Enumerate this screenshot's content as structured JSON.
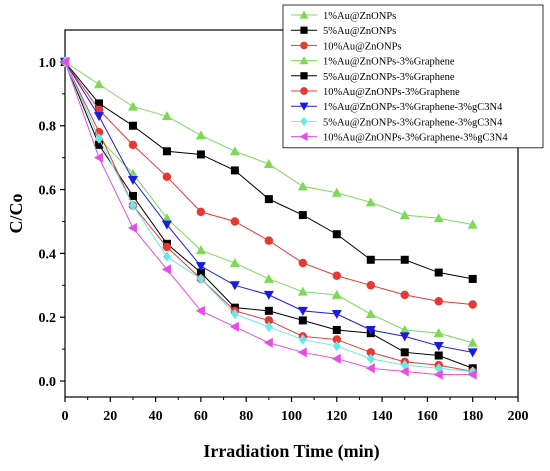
{
  "chart_data": {
    "type": "line",
    "xlabel": "Irradiation Time (min)",
    "ylabel": "C/Co",
    "xlim": [
      0,
      200
    ],
    "ylim": [
      -0.05,
      1.1
    ],
    "xticks": [
      0,
      20,
      40,
      60,
      80,
      100,
      120,
      140,
      160,
      180,
      200
    ],
    "yticks": [
      0.0,
      0.2,
      0.4,
      0.6,
      0.8,
      1.0
    ],
    "grid": false,
    "legend_position": "top-right",
    "x": [
      0,
      15,
      30,
      45,
      60,
      75,
      90,
      105,
      120,
      135,
      150,
      165,
      180
    ],
    "series": [
      {
        "name": "1%Au@ZnONPs",
        "color": "#7ed957",
        "marker": "triangle-up",
        "values": [
          1.0,
          0.93,
          0.86,
          0.83,
          0.77,
          0.72,
          0.68,
          0.61,
          0.59,
          0.56,
          0.52,
          0.51,
          0.49
        ]
      },
      {
        "name": "5%Au@ZnONPs",
        "color": "#000000",
        "marker": "square",
        "values": [
          1.0,
          0.87,
          0.8,
          0.72,
          0.71,
          0.66,
          0.57,
          0.52,
          0.46,
          0.38,
          0.38,
          0.34,
          0.32
        ]
      },
      {
        "name": "10%Au@ZnONPs",
        "color": "#e53935",
        "marker": "circle",
        "values": [
          1.0,
          0.85,
          0.74,
          0.64,
          0.53,
          0.5,
          0.44,
          0.37,
          0.33,
          0.3,
          0.27,
          0.25,
          0.24
        ]
      },
      {
        "name": "1%Au@ZnONPs-3%Graphene",
        "color": "#7ed957",
        "marker": "triangle-up",
        "values": [
          1.0,
          0.76,
          0.65,
          0.51,
          0.41,
          0.37,
          0.32,
          0.28,
          0.27,
          0.21,
          0.16,
          0.15,
          0.12
        ]
      },
      {
        "name": "5%Au@ZnONPs-3%Graphene",
        "color": "#000000",
        "marker": "square",
        "values": [
          1.0,
          0.74,
          0.58,
          0.43,
          0.34,
          0.23,
          0.22,
          0.19,
          0.16,
          0.15,
          0.09,
          0.08,
          0.04
        ]
      },
      {
        "name": "10%Au@ZnONPs-3%Graphene",
        "color": "#e53935",
        "marker": "circle",
        "values": [
          1.0,
          0.78,
          0.55,
          0.42,
          0.32,
          0.22,
          0.19,
          0.14,
          0.13,
          0.09,
          0.06,
          0.05,
          0.03
        ]
      },
      {
        "name": "1%Au@ZnONPs-3%Graphene-3%gC3N4",
        "color": "#1a1ae6",
        "marker": "triangle-down",
        "values": [
          1.0,
          0.83,
          0.63,
          0.49,
          0.36,
          0.3,
          0.27,
          0.22,
          0.21,
          0.16,
          0.14,
          0.11,
          0.09
        ]
      },
      {
        "name": "5%Au@ZnONPs-3%Graphene-3%gC3N4",
        "color": "#6fe6e6",
        "marker": "diamond",
        "values": [
          1.0,
          0.76,
          0.55,
          0.39,
          0.32,
          0.21,
          0.17,
          0.13,
          0.11,
          0.07,
          0.05,
          0.04,
          0.03
        ]
      },
      {
        "name": "10%Au@ZnONPs-3%Graphene-3%gC3N4",
        "color": "#e64ce6",
        "marker": "triangle-left",
        "values": [
          1.0,
          0.7,
          0.48,
          0.35,
          0.22,
          0.17,
          0.12,
          0.09,
          0.07,
          0.04,
          0.03,
          0.02,
          0.02
        ]
      }
    ]
  }
}
